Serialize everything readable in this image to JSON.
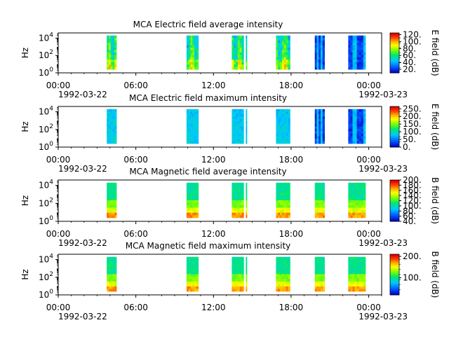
{
  "chart_data": [
    {
      "type": "heatmap",
      "title": "MCA  Electric field average intensity",
      "ylabel": "Hz",
      "y_scale": "log",
      "yticks": [
        {
          "b": "10",
          "e": "0"
        },
        {
          "b": "10",
          "e": "2"
        },
        {
          "b": "10",
          "e": "4"
        }
      ],
      "x_range": [
        "1992-03-22 00:00",
        "1992-03-23 01:00"
      ],
      "xticks": [
        "00:00",
        "06:00",
        "12:00",
        "18:00",
        "00:00"
      ],
      "xdate_left": "1992-03-22",
      "xdate_right": "1992-03-23",
      "colorbar": {
        "label": "E field (dB)",
        "range": [
          10,
          125
        ],
        "ticks": [
          "20.",
          "40.",
          "60.",
          "80.",
          "100.",
          "120."
        ],
        "colors": "#0000c0,#0050ff,#00c8ff,#00e870,#80ff00,#ffff00,#ffb000,#ff4000,#e00000"
      },
      "blocks": [
        {
          "start": "03:45",
          "end": "04:30",
          "style": "avg"
        },
        {
          "start": "09:55",
          "end": "10:50",
          "style": "avg"
        },
        {
          "start": "13:25",
          "end": "14:20",
          "style": "avg"
        },
        {
          "start": "14:30",
          "end": "14:35",
          "style": "avg"
        },
        {
          "start": "16:50",
          "end": "17:55",
          "style": "avg"
        },
        {
          "start": "19:50",
          "end": "20:35",
          "style": "blue"
        },
        {
          "start": "22:25",
          "end": "23:45",
          "style": "blue"
        }
      ]
    },
    {
      "type": "heatmap",
      "title": "MCA  Electric field maximum intensity",
      "ylabel": "Hz",
      "y_scale": "log",
      "yticks": [
        {
          "b": "10",
          "e": "0"
        },
        {
          "b": "10",
          "e": "2"
        },
        {
          "b": "10",
          "e": "4"
        }
      ],
      "x_range": [
        "1992-03-22 00:00",
        "1992-03-23 01:00"
      ],
      "xticks": [
        "00:00",
        "06:00",
        "12:00",
        "18:00",
        "00:00"
      ],
      "xdate_left": "1992-03-22",
      "xdate_right": "1992-03-23",
      "colorbar": {
        "label": "E field (dB)",
        "range": [
          0,
          265
        ],
        "ticks": [
          "0.",
          "50.",
          "100.",
          "150.",
          "200.",
          "250."
        ],
        "colors": "#0000c0,#0050ff,#00c8ff,#00e870,#80ff00,#ffff00,#ffb000,#ff4000,#e00000"
      },
      "blocks": [
        {
          "start": "03:45",
          "end": "04:30",
          "style": "max"
        },
        {
          "start": "09:55",
          "end": "10:50",
          "style": "max"
        },
        {
          "start": "13:25",
          "end": "14:20",
          "style": "max"
        },
        {
          "start": "14:30",
          "end": "14:35",
          "style": "max"
        },
        {
          "start": "16:50",
          "end": "17:55",
          "style": "max"
        },
        {
          "start": "19:50",
          "end": "20:35",
          "style": "blue"
        },
        {
          "start": "22:25",
          "end": "23:45",
          "style": "blue"
        }
      ]
    },
    {
      "type": "heatmap",
      "title": "MCA  Magnetic field average intensity",
      "ylabel": "Hz",
      "y_scale": "log",
      "yticks": [
        {
          "b": "10",
          "e": "0"
        },
        {
          "b": "10",
          "e": "2"
        },
        {
          "b": "10",
          "e": "4"
        }
      ],
      "x_range": [
        "1992-03-22 00:00",
        "1992-03-23 01:00"
      ],
      "xticks": [
        "00:00",
        "06:00",
        "12:00",
        "18:00",
        "00:00"
      ],
      "xdate_left": "1992-03-22",
      "xdate_right": "1992-03-23",
      "colorbar": {
        "label": "B field (dB)",
        "range": [
          40,
          200
        ],
        "ticks": [
          "40.",
          "60.",
          "80.",
          "100.",
          "120.",
          "140.",
          "160.",
          "180.",
          "200."
        ],
        "colors": "#0000c0,#0050ff,#00c8ff,#00e870,#80ff00,#ffff00,#ffb000,#ff4000,#e00000"
      },
      "blocks": [
        {
          "start": "03:45",
          "end": "04:30",
          "style": "mag"
        },
        {
          "start": "09:55",
          "end": "10:50",
          "style": "mag"
        },
        {
          "start": "13:25",
          "end": "14:20",
          "style": "mag"
        },
        {
          "start": "14:30",
          "end": "14:35",
          "style": "mag"
        },
        {
          "start": "16:50",
          "end": "17:55",
          "style": "mag"
        },
        {
          "start": "19:50",
          "end": "20:35",
          "style": "mag"
        },
        {
          "start": "22:25",
          "end": "23:45",
          "style": "mag"
        }
      ]
    },
    {
      "type": "heatmap",
      "title": "MCA  Magnetic field maximum intensity",
      "ylabel": "Hz",
      "y_scale": "log",
      "yticks": [
        {
          "b": "10",
          "e": "0"
        },
        {
          "b": "10",
          "e": "2"
        },
        {
          "b": "10",
          "e": "4"
        }
      ],
      "x_range": [
        "1992-03-22 00:00",
        "1992-03-23 01:00"
      ],
      "xticks": [
        "00:00",
        "06:00",
        "12:00",
        "18:00",
        "00:00"
      ],
      "xdate_left": "1992-03-22",
      "xdate_right": "1992-03-23",
      "colorbar": {
        "label": "B field (dB)",
        "range": [
          20,
          210
        ],
        "ticks": [
          "100.",
          "200."
        ],
        "colors": "#0000c0,#0050ff,#00c8ff,#00e870,#80ff00,#ffff00,#ffb000,#ff4000,#e00000"
      },
      "blocks": [
        {
          "start": "03:45",
          "end": "04:30",
          "style": "mag"
        },
        {
          "start": "09:55",
          "end": "10:50",
          "style": "mag"
        },
        {
          "start": "13:25",
          "end": "14:20",
          "style": "mag"
        },
        {
          "start": "14:30",
          "end": "14:35",
          "style": "mag"
        },
        {
          "start": "16:50",
          "end": "17:55",
          "style": "mag"
        },
        {
          "start": "19:50",
          "end": "20:35",
          "style": "mag"
        },
        {
          "start": "22:25",
          "end": "23:45",
          "style": "mag"
        }
      ]
    }
  ]
}
